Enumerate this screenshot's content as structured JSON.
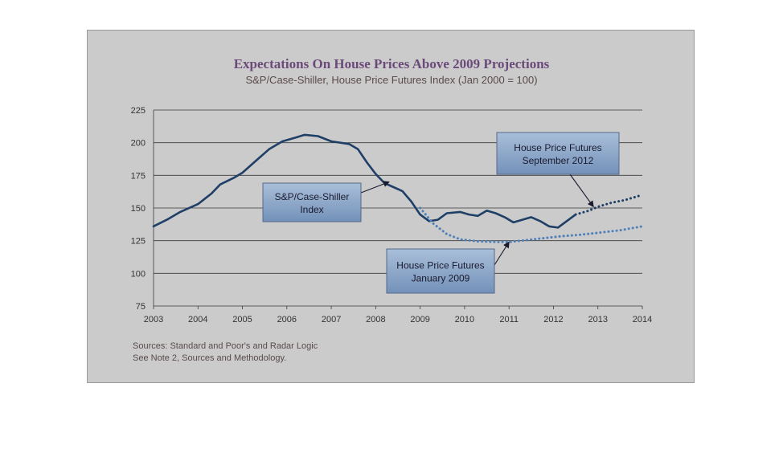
{
  "chart_data": {
    "type": "line",
    "title": "Expectations On House Prices Above 2009 Projections",
    "subtitle": "S&P/Case-Shiller, House Price Futures Index (Jan 2000 = 100)",
    "xlim": [
      2003,
      2014
    ],
    "ylim": [
      75,
      225
    ],
    "x_ticks": [
      2003,
      2004,
      2005,
      2006,
      2007,
      2008,
      2009,
      2010,
      2011,
      2012,
      2013,
      2014
    ],
    "y_ticks": [
      75,
      100,
      125,
      150,
      175,
      200,
      225
    ],
    "grid": true,
    "series": [
      {
        "name": "S&P/Case-Shiller Index",
        "style": "solid",
        "color": "#1f3f66",
        "points": [
          [
            2003.0,
            136
          ],
          [
            2003.3,
            141
          ],
          [
            2003.6,
            147
          ],
          [
            2004.0,
            153
          ],
          [
            2004.3,
            161
          ],
          [
            2004.5,
            168
          ],
          [
            2004.8,
            173
          ],
          [
            2005.0,
            177
          ],
          [
            2005.3,
            186
          ],
          [
            2005.6,
            195
          ],
          [
            2005.9,
            201
          ],
          [
            2006.2,
            204
          ],
          [
            2006.4,
            206
          ],
          [
            2006.7,
            205
          ],
          [
            2007.0,
            201
          ],
          [
            2007.4,
            199
          ],
          [
            2007.6,
            195
          ],
          [
            2007.8,
            185
          ],
          [
            2008.0,
            176
          ],
          [
            2008.2,
            169
          ],
          [
            2008.4,
            166
          ],
          [
            2008.6,
            163
          ],
          [
            2008.8,
            155
          ],
          [
            2009.0,
            145
          ],
          [
            2009.2,
            140
          ],
          [
            2009.4,
            141
          ],
          [
            2009.6,
            146
          ],
          [
            2009.9,
            147
          ],
          [
            2010.1,
            145
          ],
          [
            2010.3,
            144
          ],
          [
            2010.5,
            148
          ],
          [
            2010.7,
            146
          ],
          [
            2010.9,
            143
          ],
          [
            2011.1,
            139
          ],
          [
            2011.3,
            141
          ],
          [
            2011.5,
            143
          ],
          [
            2011.7,
            140
          ],
          [
            2011.9,
            136
          ],
          [
            2012.1,
            135
          ],
          [
            2012.3,
            140
          ],
          [
            2012.5,
            145
          ]
        ]
      },
      {
        "name": "House Price Futures September 2012",
        "style": "dotted",
        "color": "#1f3f66",
        "points": [
          [
            2012.5,
            145
          ],
          [
            2012.8,
            148
          ],
          [
            2013.0,
            151
          ],
          [
            2013.3,
            154
          ],
          [
            2013.6,
            156
          ],
          [
            2014.0,
            160
          ]
        ]
      },
      {
        "name": "House Price Futures January 2009",
        "style": "dotted",
        "color": "#4f7fb8",
        "points": [
          [
            2009.0,
            150
          ],
          [
            2009.3,
            138
          ],
          [
            2009.6,
            130
          ],
          [
            2009.9,
            126
          ],
          [
            2010.3,
            124.5
          ],
          [
            2010.8,
            124
          ],
          [
            2011.0,
            124
          ],
          [
            2011.4,
            125.5
          ],
          [
            2011.8,
            127
          ],
          [
            2012.2,
            128.5
          ],
          [
            2012.6,
            129.5
          ],
          [
            2013.0,
            131
          ],
          [
            2013.5,
            133
          ],
          [
            2014.0,
            136
          ]
        ]
      }
    ],
    "annotations": [
      {
        "text": [
          "S&P/Case-Shiller",
          "Index"
        ],
        "target": [
          2008.3,
          170
        ]
      },
      {
        "text": [
          "House Price Futures",
          "September 2012"
        ],
        "target": [
          2012.9,
          151
        ]
      },
      {
        "text": [
          "House Price Futures",
          "January 2009"
        ],
        "target": [
          2011.0,
          124
        ]
      }
    ]
  },
  "sources": [
    "Sources: Standard and Poor's and Radar Logic",
    "See Note 2, Sources and Methodology."
  ]
}
